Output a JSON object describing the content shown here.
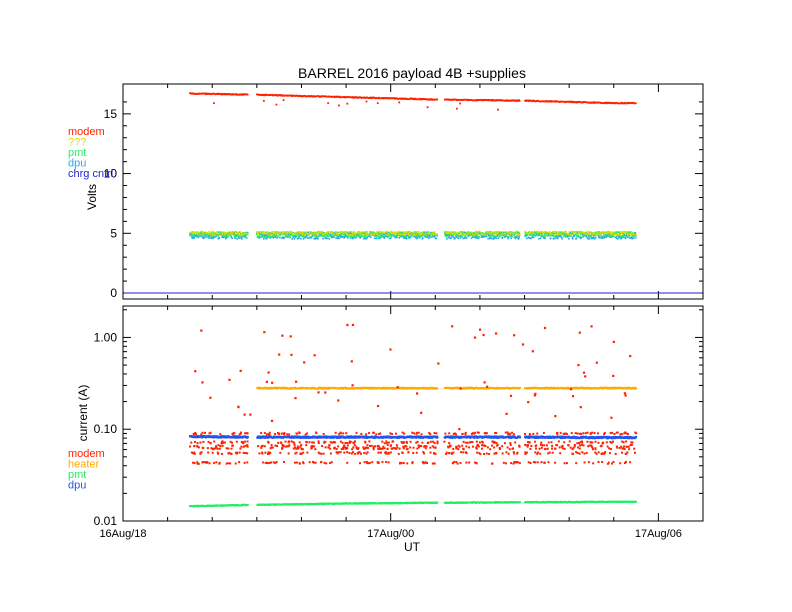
{
  "title": "BARREL 2016 payload 4B +supplies",
  "colors": {
    "modem": "#ff2200",
    "qqq": "#dddd00",
    "pmt": "#22ee66",
    "dpu": "#22aaee",
    "chrg_cntrl": "#2222cc",
    "heater": "#ffaa00",
    "dpu_current": "#2255ee"
  },
  "chart_data": [
    {
      "type": "scatter",
      "title": "BARREL 2016 payload 4B +supplies",
      "xlabel": "",
      "ylabel": "Volts",
      "ylim": [
        -0.5,
        17.5
      ],
      "yticks": [
        0,
        5,
        10,
        15
      ],
      "ytick_labels": [
        "0",
        "5",
        "10",
        "15"
      ],
      "xlim": [
        0,
        13
      ],
      "xticks": [
        0,
        6,
        12
      ],
      "legend": [
        "modem",
        "???",
        "pmt",
        "dpu",
        "chrg cntrl"
      ],
      "legend_colors": [
        "#ff2200",
        "#dddd00",
        "#22ee66",
        "#22aaee",
        "#2222cc"
      ],
      "series": [
        {
          "name": "modem",
          "x": [
            1.5,
            3.0,
            5.0,
            7.0,
            9.0,
            11.0
          ],
          "y": [
            16.7,
            16.6,
            16.4,
            16.2,
            16.1,
            15.9
          ]
        },
        {
          "name": "???",
          "x": [
            1.5,
            5.0,
            9.0,
            11.0
          ],
          "y": [
            5.0,
            5.0,
            5.0,
            5.0
          ]
        },
        {
          "name": "pmt",
          "x": [
            1.5,
            5.0,
            9.0,
            11.0
          ],
          "y": [
            4.9,
            4.9,
            4.9,
            4.9
          ]
        },
        {
          "name": "dpu",
          "x": [
            1.5,
            5.0,
            9.0,
            11.0
          ],
          "y": [
            4.8,
            4.8,
            4.8,
            4.8
          ]
        },
        {
          "name": "chrg cntrl",
          "x": [
            0,
            13
          ],
          "y": [
            0,
            0
          ]
        }
      ]
    },
    {
      "type": "scatter",
      "title": "",
      "xlabel": "UT",
      "ylabel": "current (A)",
      "yscale": "log",
      "ylim": [
        0.01,
        2.2
      ],
      "yticks": [
        0.01,
        0.1,
        1.0
      ],
      "ytick_labels": [
        "0.01",
        "0.10",
        "1.00"
      ],
      "xlim": [
        0,
        13
      ],
      "xticks": [
        0,
        6,
        12
      ],
      "xtick_labels": [
        "16Aug/18",
        "17Aug/00",
        "17Aug/06"
      ],
      "legend": [
        "modem",
        "heater",
        "pmt",
        "dpu"
      ],
      "legend_colors": [
        "#ff2200",
        "#ffaa00",
        "#22ee66",
        "#2255ee"
      ],
      "series": [
        {
          "name": "modem",
          "x": [
            1.5,
            3.0,
            5.0,
            7.0,
            9.0,
            11.0
          ],
          "y": [
            0.062,
            0.062,
            0.062,
            0.062,
            0.062,
            0.062
          ]
        },
        {
          "name": "heater",
          "x": [
            3.0,
            5.0,
            7.0,
            9.0,
            11.0
          ],
          "y": [
            0.28,
            0.28,
            0.28,
            0.28,
            0.28
          ]
        },
        {
          "name": "pmt",
          "x": [
            1.5,
            3.0,
            5.0,
            7.0,
            9.0,
            11.0
          ],
          "y": [
            0.0145,
            0.015,
            0.0155,
            0.0158,
            0.016,
            0.0162
          ]
        },
        {
          "name": "dpu",
          "x": [
            1.5,
            3.0,
            5.0,
            7.0,
            9.0,
            11.0
          ],
          "y": [
            0.083,
            0.082,
            0.082,
            0.082,
            0.082,
            0.081
          ]
        }
      ]
    }
  ]
}
